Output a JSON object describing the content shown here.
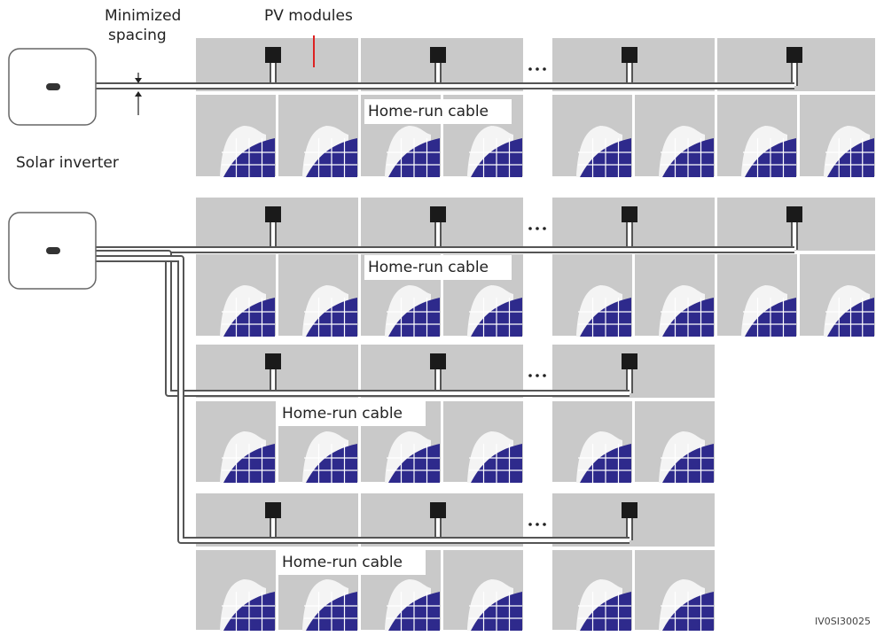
{
  "labels": {
    "spacing_line1": "Minimized",
    "spacing_line2": "spacing",
    "pv_modules": "PV modules",
    "solar_inverter": "Solar inverter",
    "figure_id": "IV0SI30025"
  },
  "home_run_cables": [
    "Home-run cable",
    "Home-run cable",
    "Home-run cable",
    "Home-run cable"
  ]
}
